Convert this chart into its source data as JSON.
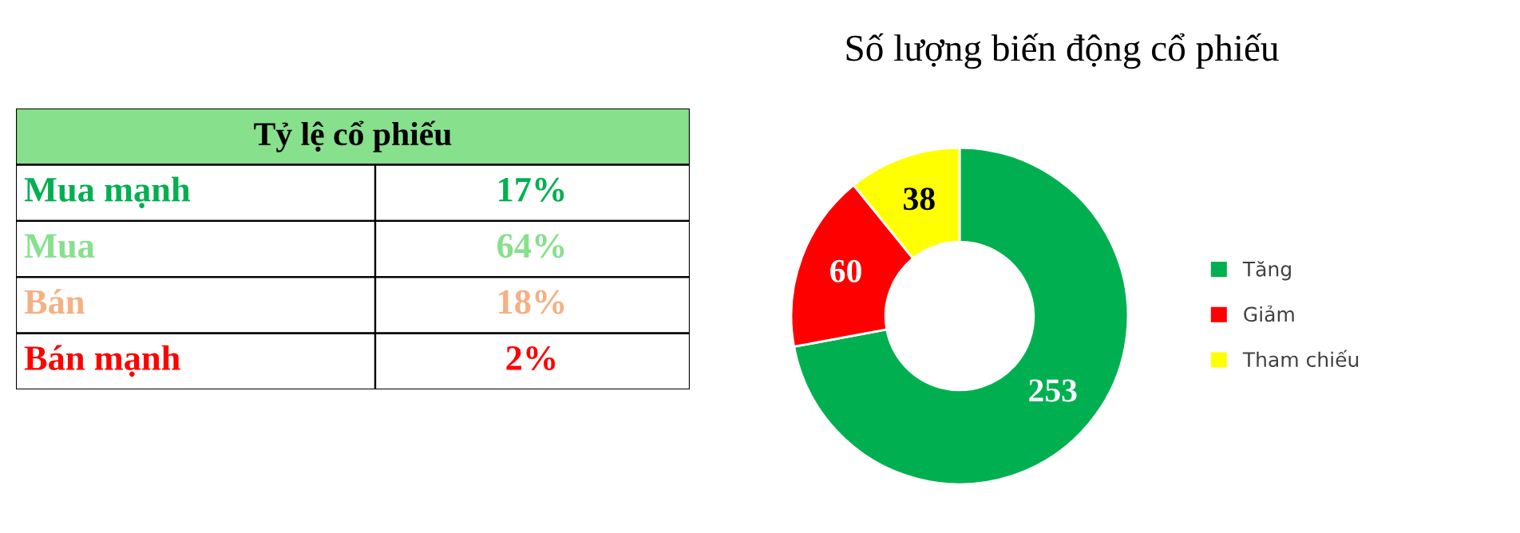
{
  "chart_data": [
    {
      "type": "other",
      "title": "Tỷ lệ cổ phiếu",
      "color": "#86e08c",
      "categories": [
        "Mua mạnh",
        "Mua",
        "Bán",
        "Bán mạnh"
      ],
      "value_labels": [
        "17%",
        "64%",
        "18%",
        "2%"
      ],
      "colors": [
        "#00b050",
        "#86e08c",
        "#f4b183",
        "#ff0000"
      ]
    },
    {
      "type": "donut",
      "title": "Số lượng biến động cổ phiếu",
      "categories": [
        "Tăng",
        "Giảm",
        "Tham chiếu"
      ],
      "values": [
        253,
        60,
        38
      ],
      "colors": [
        "#00b050",
        "#ff0000",
        "#ffff00"
      ],
      "data_labels": true,
      "legend": "right"
    }
  ]
}
